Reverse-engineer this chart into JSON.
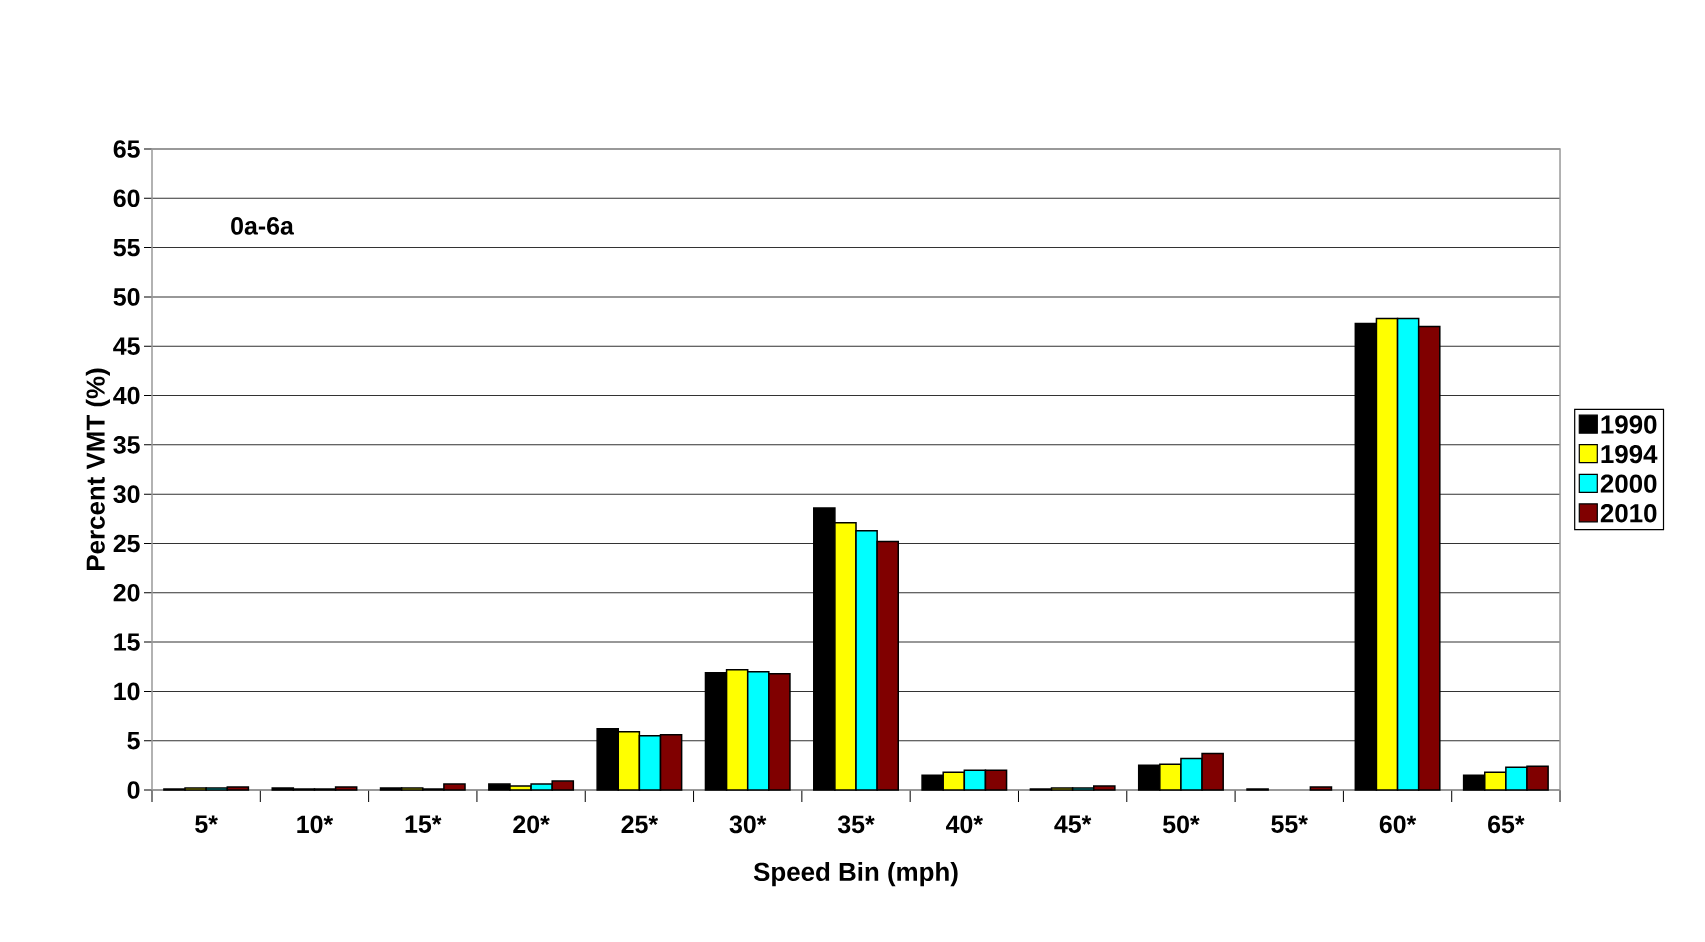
{
  "chart_data": {
    "type": "bar",
    "xlabel": "Speed Bin (mph)",
    "ylabel": "Percent VMT (%)",
    "annotations": [
      "0a-6a"
    ],
    "categories": [
      "5*",
      "10*",
      "15*",
      "20*",
      "25*",
      "30*",
      "35*",
      "40*",
      "45*",
      "50*",
      "55*",
      "60*",
      "65*"
    ],
    "series": [
      {
        "name": "1990",
        "color": "#000000",
        "values": [
          0.1,
          0.2,
          0.2,
          0.6,
          6.2,
          11.9,
          28.6,
          1.5,
          0.1,
          2.5,
          0.1,
          47.3,
          1.5
        ]
      },
      {
        "name": "1994",
        "color": "#ffff00",
        "values": [
          0.2,
          0.1,
          0.2,
          0.4,
          5.9,
          12.2,
          27.1,
          1.8,
          0.2,
          2.6,
          null,
          47.8,
          1.8
        ]
      },
      {
        "name": "2000",
        "color": "#00ffff",
        "values": [
          0.2,
          0.1,
          0.1,
          0.6,
          5.5,
          12.0,
          26.3,
          2.0,
          0.2,
          3.2,
          null,
          47.8,
          2.3
        ]
      },
      {
        "name": "2010",
        "color": "#800000",
        "values": [
          0.3,
          0.3,
          0.6,
          0.9,
          5.6,
          11.8,
          25.2,
          2.0,
          0.4,
          3.7,
          0.3,
          47.0,
          2.4
        ]
      }
    ],
    "ylim": [
      0,
      65
    ],
    "yticks": [
      0,
      5,
      10,
      15,
      20,
      25,
      30,
      35,
      40,
      45,
      50,
      55,
      60,
      65
    ],
    "grid": "y",
    "legend": "right"
  }
}
